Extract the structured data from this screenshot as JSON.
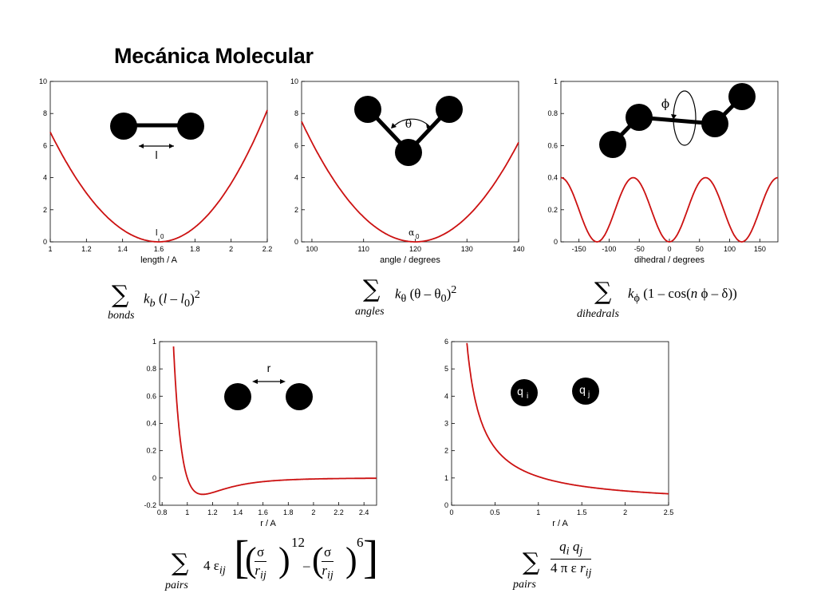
{
  "title": "Mecánica Molecular",
  "charts": [
    {
      "id": "bonds",
      "xlabel": "length / A",
      "xticks": [
        "1",
        "1.2",
        "1.4",
        "1.6",
        "1.8",
        "2",
        "2.2"
      ],
      "yticks": [
        "0",
        "2",
        "4",
        "6",
        "8",
        "10"
      ],
      "molecule_label": "l",
      "min_label": "l",
      "min_label_sub": "0"
    },
    {
      "id": "angles",
      "xlabel": "angle / degrees",
      "xticks": [
        "100",
        "110",
        "120",
        "130",
        "140"
      ],
      "yticks": [
        "0",
        "2",
        "4",
        "6",
        "8",
        "10"
      ],
      "molecule_label": "θ",
      "min_label": "α",
      "min_label_sub": "0"
    },
    {
      "id": "dihedrals",
      "xlabel": "dihedral / degrees",
      "xticks": [
        "-150",
        "-100",
        "-50",
        "0",
        "50",
        "100",
        "150"
      ],
      "yticks": [
        "0",
        "0.2",
        "0.4",
        "0.6",
        "0.8",
        "1"
      ],
      "molecule_label": "ϕ"
    },
    {
      "id": "lj",
      "xlabel": "r / A",
      "xticks": [
        "0.8",
        "1",
        "1.2",
        "1.4",
        "1.6",
        "1.8",
        "2",
        "2.2",
        "2.4"
      ],
      "yticks": [
        "-0.2",
        "0",
        "0.2",
        "0.4",
        "0.6",
        "0.8",
        "1"
      ],
      "molecule_label": "r"
    },
    {
      "id": "coulomb",
      "xlabel": "r / A",
      "xticks": [
        "0",
        "0.5",
        "1",
        "1.5",
        "2",
        "2.5"
      ],
      "yticks": [
        "0",
        "1",
        "2",
        "3",
        "4",
        "5",
        "6"
      ],
      "charge_i": "q",
      "charge_i_sub": "i",
      "charge_j": "q",
      "charge_j_sub": "j"
    }
  ],
  "formulas": {
    "bonds": {
      "under": "bonds"
    },
    "angles": {
      "under": "angles"
    },
    "dihedrals": {
      "under": "dihedrals"
    },
    "pairs_lj": {
      "under": "pairs"
    },
    "pairs_coulomb": {
      "under": "pairs"
    }
  },
  "chart_data": [
    {
      "type": "line",
      "id": "bonds",
      "x_range": [
        1,
        2.2
      ],
      "ylim": [
        0,
        10
      ],
      "series": [
        {
          "function": "k(l-1.6)^2",
          "color": "#cc0000"
        }
      ],
      "xlabel": "length / A"
    },
    {
      "type": "line",
      "id": "angles",
      "x_range": [
        100,
        140
      ],
      "ylim": [
        0,
        10
      ],
      "series": [
        {
          "function": "k(θ-120)^2",
          "color": "#cc0000"
        }
      ],
      "xlabel": "angle / degrees"
    },
    {
      "type": "line",
      "id": "dihedrals",
      "x_range": [
        -180,
        180
      ],
      "ylim": [
        0,
        1
      ],
      "series": [
        {
          "function": "0.2(1-cos(3φ))",
          "color": "#cc0000"
        }
      ],
      "xlabel": "dihedral / degrees"
    },
    {
      "type": "line",
      "id": "lj",
      "x_range": [
        0.8,
        2.5
      ],
      "ylim": [
        -0.2,
        1
      ],
      "series": [
        {
          "function": "4ε[(σ/r)^12-(σ/r)^6]",
          "color": "#cc0000"
        }
      ],
      "xlabel": "r / A"
    },
    {
      "type": "line",
      "id": "coulomb",
      "x_range": [
        0,
        2.5
      ],
      "ylim": [
        0,
        6
      ],
      "series": [
        {
          "function": "qiqj/(4πεr)",
          "color": "#cc0000"
        }
      ],
      "xlabel": "r / A"
    }
  ]
}
